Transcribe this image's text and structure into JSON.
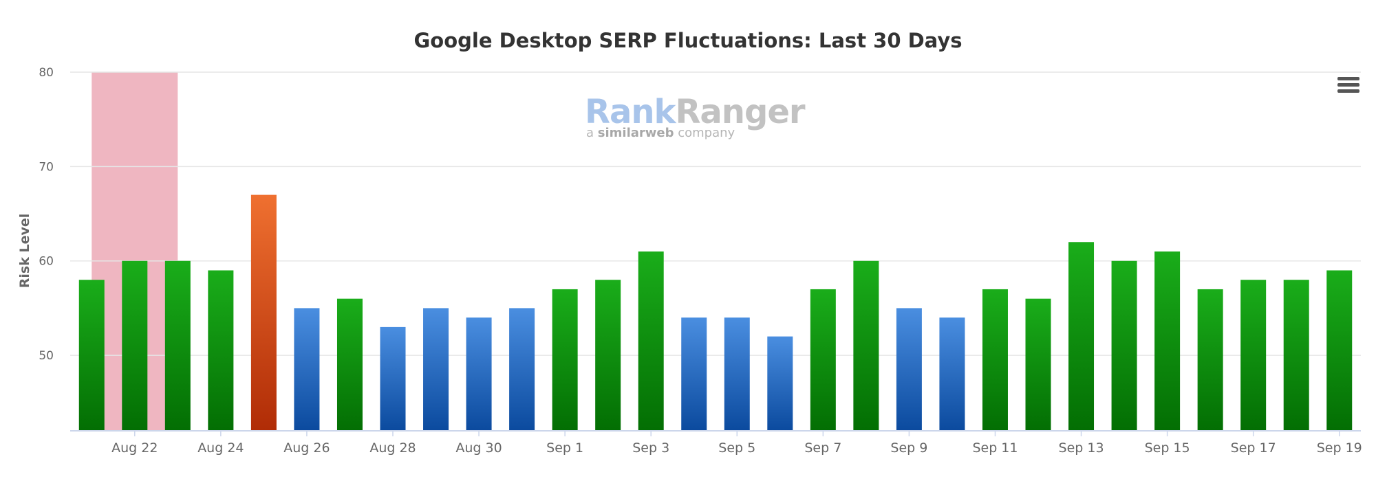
{
  "chart_data": {
    "type": "bar",
    "title": "Google Desktop SERP Fluctuations: Last 30 Days",
    "ylabel": "Risk Level",
    "xlabel": "",
    "ylim": [
      42,
      80
    ],
    "yticks": [
      50,
      60,
      70,
      80
    ],
    "grid": true,
    "categories": [
      "Aug 21",
      "Aug 22",
      "Aug 23",
      "Aug 24",
      "Aug 25",
      "Aug 26",
      "Aug 27",
      "Aug 28",
      "Aug 29",
      "Aug 30",
      "Aug 31",
      "Sep 1",
      "Sep 2",
      "Sep 3",
      "Sep 4",
      "Sep 5",
      "Sep 6",
      "Sep 7",
      "Sep 8",
      "Sep 9",
      "Sep 10",
      "Sep 11",
      "Sep 12",
      "Sep 13",
      "Sep 14",
      "Sep 15",
      "Sep 16",
      "Sep 17",
      "Sep 18",
      "Sep 19"
    ],
    "xtick_labels": [
      "Aug 22",
      "Aug 24",
      "Aug 26",
      "Aug 28",
      "Aug 30",
      "Sep 1",
      "Sep 3",
      "Sep 5",
      "Sep 7",
      "Sep 9",
      "Sep 11",
      "Sep 13",
      "Sep 15",
      "Sep 17",
      "Sep 19"
    ],
    "values": [
      58,
      60,
      60,
      59,
      67,
      55,
      56,
      53,
      55,
      54,
      55,
      57,
      58,
      61,
      54,
      54,
      52,
      57,
      60,
      55,
      54,
      57,
      56,
      62,
      60,
      61,
      57,
      58,
      58,
      59
    ],
    "levels": [
      "green",
      "green",
      "green",
      "green",
      "orange",
      "blue",
      "green",
      "blue",
      "blue",
      "blue",
      "blue",
      "green",
      "green",
      "green",
      "blue",
      "blue",
      "blue",
      "green",
      "green",
      "blue",
      "blue",
      "green",
      "green",
      "green",
      "green",
      "green",
      "green",
      "green",
      "green",
      "green"
    ],
    "highlight_band": {
      "from_category": "Aug 21",
      "to_category": "Aug 22",
      "color": "#efb6c1"
    },
    "colors": {
      "green_top": "#1aad1a",
      "green_bottom": "#036e03",
      "blue_top": "#4a8ee0",
      "blue_bottom": "#0b4a9e",
      "orange_top": "#ef7030",
      "orange_bottom": "#b02c06",
      "grid": "#e6e6e6",
      "axis": "#ccd6eb",
      "text": "#666666"
    }
  },
  "watermark": {
    "brand_first": "Rank",
    "brand_second": "Ranger",
    "tagline_prefix": "a",
    "tagline_brand": "similarweb",
    "tagline_suffix": "company"
  },
  "menu": {
    "icon": "hamburger-menu-icon"
  }
}
